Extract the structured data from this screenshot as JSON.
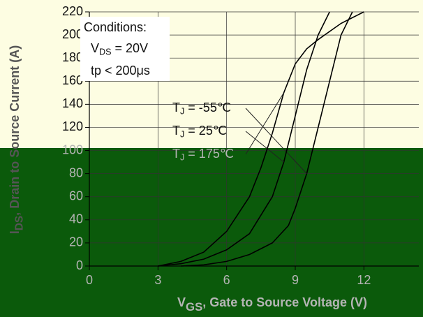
{
  "chart_data": {
    "type": "line",
    "x_label": {
      "main": "V",
      "sub": "GS",
      "rest": ", Gate to Source Voltage (V)"
    },
    "y_label": {
      "main": "I",
      "sub": "DS",
      "rest": ", Drain to Source Current (A)"
    },
    "conditions": {
      "title": "Conditions:",
      "vds": {
        "main": "V",
        "sub": "DS",
        "rest": " = 20V"
      },
      "tp": "tp < 200μs"
    },
    "series": [
      {
        "name": {
          "main": "T",
          "sub": "J",
          "rest": " = -55℃"
        },
        "color": "#000000",
        "x": [
          4,
          5,
          6,
          7,
          8,
          8.7,
          9,
          9.5,
          10,
          10.5,
          11,
          11.5
        ],
        "values": [
          0,
          1,
          4,
          10,
          20,
          35,
          50,
          80,
          120,
          160,
          200,
          220
        ]
      },
      {
        "name": {
          "main": "T",
          "sub": "J",
          "rest": " = 25℃"
        },
        "color": "#000000",
        "x": [
          3,
          4,
          5,
          6,
          7,
          8,
          8.5,
          9,
          9.5,
          10,
          10.5
        ],
        "values": [
          0,
          2,
          6,
          14,
          28,
          60,
          90,
          130,
          170,
          200,
          220
        ]
      },
      {
        "name": {
          "main": "T",
          "sub": "J",
          "rest": " = 175℃"
        },
        "color": "#000000",
        "x": [
          3,
          4,
          5,
          6,
          7,
          7.5,
          8,
          8.5,
          9,
          9.5,
          10,
          11,
          12
        ],
        "values": [
          0,
          4,
          12,
          30,
          60,
          85,
          115,
          150,
          175,
          188,
          196,
          210,
          220
        ]
      }
    ],
    "xlim": [
      0,
      14.4
    ],
    "xticks": [
      0,
      3,
      6,
      9,
      12
    ],
    "ylim": [
      0,
      220
    ],
    "yticks": [
      0,
      20,
      40,
      60,
      80,
      100,
      120,
      140,
      160,
      180,
      200,
      220
    ],
    "grid": true
  }
}
